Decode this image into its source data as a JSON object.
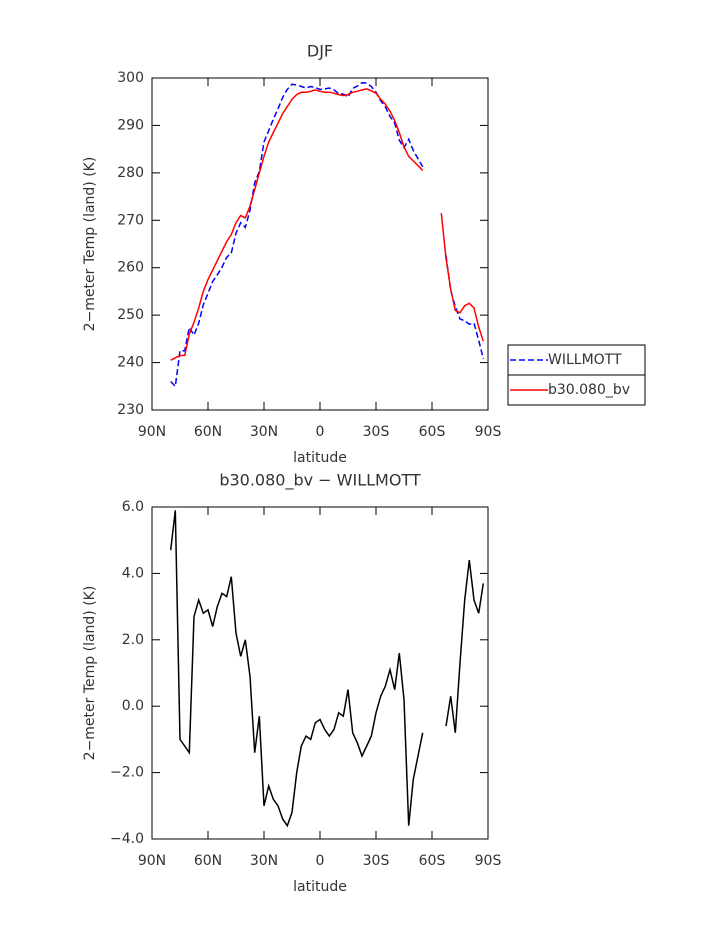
{
  "chart_data": [
    {
      "type": "line",
      "title": "DJF",
      "x_label": "latitude",
      "y_label": "2−meter Temp (land) (K)",
      "x": [
        80,
        77.5,
        75,
        72.5,
        70,
        67.5,
        65,
        62.5,
        60,
        57.5,
        55,
        52.5,
        50,
        47.5,
        45,
        42.5,
        40,
        37.5,
        35,
        32.5,
        30,
        27.5,
        25,
        22.5,
        20,
        17.5,
        15,
        12.5,
        10,
        7.5,
        5,
        2.5,
        0,
        -2.5,
        -5,
        -7.5,
        -10,
        -12.5,
        -15,
        -17.5,
        -20,
        -22.5,
        -25,
        -27.5,
        -30,
        -32.5,
        -35,
        -37.5,
        -40,
        -42.5,
        -45,
        -47.5,
        -50,
        -52.5,
        -55,
        -57.5,
        -60,
        -62.5,
        -65,
        -67.5,
        -70,
        -72.5,
        -75,
        -77.5,
        -80,
        -82.5,
        -85,
        -87.5
      ],
      "series": [
        {
          "name": "WILLMOTT",
          "color": "#0000ff",
          "dashed": true,
          "values": [
            236,
            235,
            242.5,
            242.5,
            247.4,
            245.8,
            248.3,
            252.2,
            254.6,
            257.1,
            258.5,
            260.1,
            262.2,
            263.1,
            267.3,
            269.5,
            268.5,
            272.1,
            277.9,
            280.3,
            286.5,
            288.9,
            291.3,
            293.5,
            295.9,
            297.6,
            298.7,
            298.5,
            298.2,
            297.9,
            298.2,
            298,
            297.6,
            297.7,
            297.9,
            297.5,
            296.7,
            296.6,
            296,
            297.8,
            298.3,
            299,
            298.9,
            298.2,
            297,
            295.2,
            293.9,
            291.9,
            290.5,
            286.9,
            285.3,
            287.1,
            284.7,
            283,
            281.3,
            null,
            null,
            null,
            null,
            262.6,
            255.2,
            251.8,
            249.2,
            248.8,
            248.1,
            248.3,
            244.7,
            240.8
          ]
        },
        {
          "name": "b30.080_bv",
          "color": "#ff0000",
          "dashed": false,
          "values": [
            240.5,
            241,
            241.5,
            241.5,
            246,
            248.5,
            251.5,
            255,
            257.5,
            259.5,
            261.5,
            263.5,
            265.5,
            267,
            269.5,
            271,
            270.5,
            273,
            276.5,
            280,
            283.5,
            286.5,
            288.5,
            290.5,
            292.5,
            294,
            295.5,
            296.5,
            297,
            297,
            297.2,
            297.5,
            297.2,
            297,
            297,
            296.8,
            296.5,
            296.3,
            296.5,
            297,
            297.2,
            297.5,
            297.7,
            297.3,
            296.8,
            295.5,
            294.5,
            293,
            291,
            288.5,
            285.5,
            283.5,
            282.5,
            281.5,
            280.5,
            null,
            null,
            null,
            271.5,
            262,
            255.5,
            251,
            250.5,
            252,
            252.5,
            251.5,
            247.5,
            244.5
          ]
        }
      ],
      "xlim": [
        90,
        -90
      ],
      "xticks": [
        {
          "value": 90,
          "label": "90N"
        },
        {
          "value": 60,
          "label": "60N"
        },
        {
          "value": 30,
          "label": "30N"
        },
        0,
        {
          "value": -30,
          "label": "30S"
        },
        {
          "value": -60,
          "label": "60S"
        },
        {
          "value": -90,
          "label": "90S"
        }
      ],
      "ylim": [
        230,
        300
      ],
      "yticks": [
        230,
        240,
        250,
        260,
        270,
        280,
        290,
        300
      ],
      "legend": "right"
    },
    {
      "type": "line",
      "title": "b30.080_bv − WILLMOTT",
      "x_label": "latitude",
      "y_label": "2−meter Temp (land) (K)",
      "x": [
        80,
        77.5,
        75,
        72.5,
        70,
        67.5,
        65,
        62.5,
        60,
        57.5,
        55,
        52.5,
        50,
        47.5,
        45,
        42.5,
        40,
        37.5,
        35,
        32.5,
        30,
        27.5,
        25,
        22.5,
        20,
        17.5,
        15,
        12.5,
        10,
        7.5,
        5,
        2.5,
        0,
        -2.5,
        -5,
        -7.5,
        -10,
        -12.5,
        -15,
        -17.5,
        -20,
        -22.5,
        -25,
        -27.5,
        -30,
        -32.5,
        -35,
        -37.5,
        -40,
        -42.5,
        -45,
        -47.5,
        -50,
        -52.5,
        -55,
        -57.5,
        -60,
        -62.5,
        -65,
        -67.5,
        -70,
        -72.5,
        -75,
        -77.5,
        -80,
        -82.5,
        -85,
        -87.5
      ],
      "color": "#000000",
      "values": [
        4.7,
        5.9,
        -1.0,
        -1.2,
        -1.4,
        2.7,
        3.2,
        2.8,
        2.9,
        2.4,
        3.0,
        3.4,
        3.3,
        3.9,
        2.2,
        1.5,
        2.0,
        0.9,
        -1.4,
        -0.3,
        -3.0,
        -2.4,
        -2.8,
        -3.0,
        -3.4,
        -3.6,
        -3.2,
        -2.0,
        -1.2,
        -0.9,
        -1.0,
        -0.5,
        -0.4,
        -0.7,
        -0.9,
        -0.7,
        -0.2,
        -0.3,
        0.5,
        -0.8,
        -1.1,
        -1.5,
        -1.2,
        -0.9,
        -0.2,
        0.3,
        0.6,
        1.1,
        0.5,
        1.6,
        0.2,
        -3.6,
        -2.2,
        -1.5,
        -0.8,
        null,
        null,
        null,
        null,
        -0.6,
        0.3,
        -0.8,
        1.3,
        3.2,
        4.4,
        3.2,
        2.8,
        3.7
      ],
      "xlim": [
        90,
        -90
      ],
      "xticks": [
        {
          "value": 90,
          "label": "90N"
        },
        {
          "value": 60,
          "label": "60N"
        },
        {
          "value": 30,
          "label": "30N"
        },
        0,
        {
          "value": -30,
          "label": "30S"
        },
        {
          "value": -60,
          "label": "60S"
        },
        {
          "value": -90,
          "label": "90S"
        }
      ],
      "ylim": [
        -4,
        6
      ],
      "yticks": [
        {
          "value": -4,
          "label": "−4.0"
        },
        {
          "value": -2,
          "label": "−2.0"
        },
        {
          "value": 0,
          "label": "0.0"
        },
        {
          "value": 2,
          "label": "2.0"
        },
        {
          "value": 4,
          "label": "4.0"
        },
        {
          "value": 6,
          "label": "6.0"
        }
      ]
    }
  ]
}
